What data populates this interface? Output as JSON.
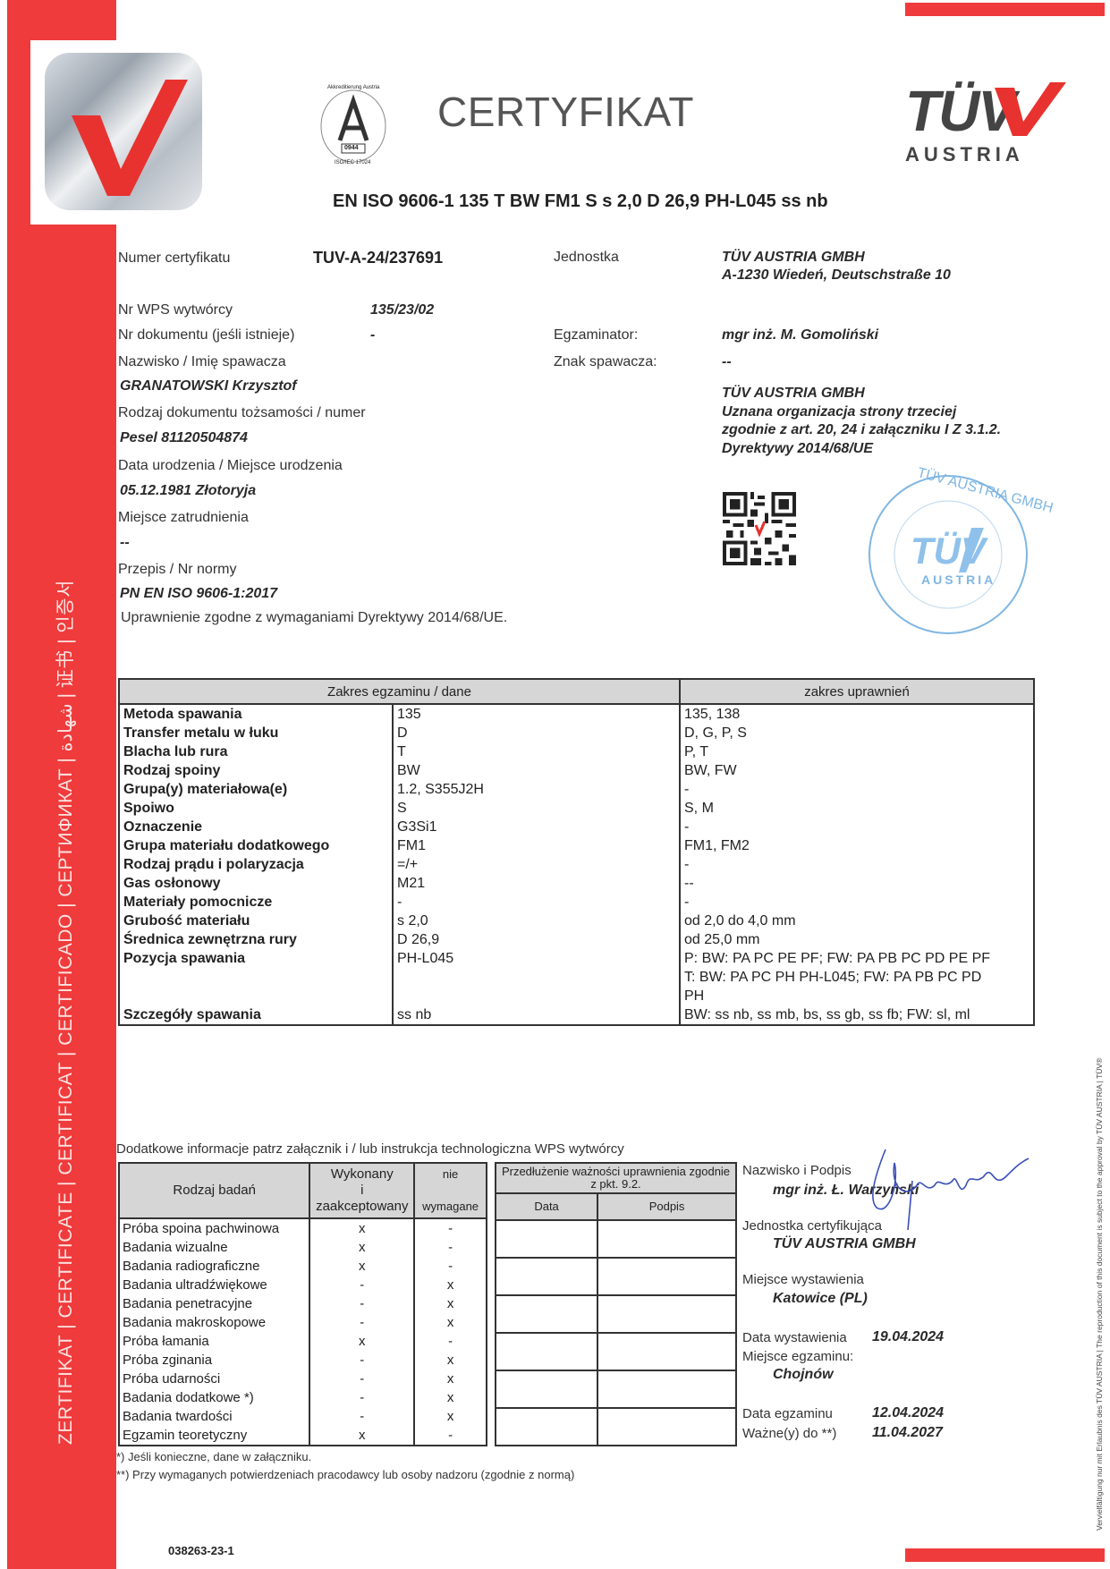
{
  "band": {
    "text": "ZERTIFIKAT | CERTIFICATE | CERTIFICAT | CERTIFICADO | СЕРТИФИКАТ | شهادة | 证书 | 인증서",
    "color": "#ef3b3b"
  },
  "logos": {
    "accreditation": {
      "lines": [
        "Akkreditierung Austria",
        "A",
        "0944",
        "ISO/IEC 17024"
      ]
    },
    "tuv": {
      "word": "TÜV",
      "sub": "AUSTRIA"
    },
    "stamp": {
      "ring": "TÜV AUSTRIA GMBH",
      "word": "TÜV",
      "sub": "AUSTRIA"
    }
  },
  "header": {
    "title": "CERTYFIKAT",
    "standard": "EN ISO 9606-1 135 T BW FM1 S s 2,0 D 26,9 PH-L045 ss nb"
  },
  "info": {
    "cert_no_label": "Numer certyfikatu",
    "cert_no": "TUV-A-24/237691",
    "unit_label": "Jednostka",
    "unit_line1": "TÜV AUSTRIA GMBH",
    "unit_line2": "A-1230 Wiedeń, Deutschstraße 10",
    "wps_label": "Nr WPS wytwórcy",
    "wps": "135/23/02",
    "doc_label": "Nr dokumentu (jeśli istnieje)",
    "doc": "-",
    "examiner_label": "Egzaminator:",
    "examiner": "mgr inż. M. Gomoliński",
    "name_label": "Nazwisko / Imię spawacza",
    "name": "GRANATOWSKI Krzysztof",
    "mark_label": "Znak spawacza:",
    "mark": "--",
    "id_label": "Rodzaj dokumentu tożsamości / numer",
    "id": "Pesel 81120504874",
    "birth_label": "Data urodzenia / Miejsce urodzenia",
    "birth": "05.12.1981 Złotoryja",
    "employer_label": "Miejsce zatrudnienia",
    "employer": "--",
    "norm_label": "Przepis / Nr normy",
    "norm": "PN EN ISO 9606-1:2017",
    "directive_note": "Uprawnienie zgodne z wymaganiami Dyrektywy 2014/68/UE.",
    "org": [
      "TÜV AUSTRIA GMBH",
      "Uznana organizacja strony trzeciej",
      "zgodnie z art. 20, 24 i załączniku I Z 3.1.2.",
      "Dyrektywy 2014/68/UE"
    ]
  },
  "scope_table": {
    "headers": [
      "Zakres egzaminu / dane",
      "zakres uprawnień"
    ],
    "rows": [
      [
        "Metoda spawania",
        "135",
        "135, 138"
      ],
      [
        "Transfer metalu w łuku",
        "D",
        "D, G, P, S"
      ],
      [
        "Blacha lub rura",
        "T",
        "P, T"
      ],
      [
        "Rodzaj spoiny",
        "BW",
        "BW, FW"
      ],
      [
        "Grupa(y) materiałowa(e)",
        "1.2, S355J2H",
        "-"
      ],
      [
        "Spoiwo",
        "S",
        "S, M"
      ],
      [
        "Oznaczenie",
        "G3Si1",
        "-"
      ],
      [
        "Grupa materiału dodatkowego",
        "FM1",
        "FM1, FM2"
      ],
      [
        "Rodzaj prądu i polaryzacja",
        "=/+",
        "-"
      ],
      [
        "Gas osłonowy",
        "M21",
        "--"
      ],
      [
        "Materiały pomocnicze",
        "-",
        "-"
      ],
      [
        "Grubość materiału",
        "s 2,0",
        "od 2,0 do 4,0 mm"
      ],
      [
        "Średnica zewnętrzna rury",
        "D 26,9",
        "od 25,0 mm"
      ],
      [
        "Pozycja spawania",
        "PH-L045",
        "P: BW: PA PC PE PF; FW: PA PB PC PD PE PF\nT: BW: PA PC PH PH-L045; FW: PA PB PC PD\nPH"
      ],
      [
        "Szczegóły spawania",
        "ss nb",
        "BW: ss nb, ss mb, bs, ss gb, ss fb; FW: sl, ml"
      ]
    ]
  },
  "additional_note": "Dodatkowe informacje patrz załącznik i / lub instrukcja technologiczna WPS wytwórcy",
  "tests_table": {
    "headers": [
      "Rodzaj badań",
      "Wykonany\ni\nzaakceptowany",
      "nie\n\nwymagane"
    ],
    "rows": [
      [
        "Próba spoina pachwinowa",
        "x",
        "-"
      ],
      [
        "Badania wizualne",
        "x",
        "-"
      ],
      [
        "Badania radiograficzne",
        "x",
        "-"
      ],
      [
        "Badania ultradźwiękowe",
        "-",
        "x"
      ],
      [
        "Badania penetracyjne",
        "-",
        "x"
      ],
      [
        "Badania makroskopowe",
        "-",
        "x"
      ],
      [
        "Próba łamania",
        "x",
        "-"
      ],
      [
        "Próba zginania",
        "-",
        "x"
      ],
      [
        "Próba udarności",
        "-",
        "x"
      ],
      [
        "Badania dodatkowe *)",
        "-",
        "x"
      ],
      [
        "Badania twardości",
        "-",
        "x"
      ],
      [
        "Egzamin teoretyczny",
        "x",
        "-"
      ]
    ]
  },
  "extension_table": {
    "title": "Przedłużenie ważności uprawnienia zgodnie z pkt. 9.2.",
    "headers": [
      "Data",
      "Podpis"
    ],
    "rows": 6
  },
  "signoff": {
    "name_label": "Nazwisko i Podpis",
    "name": "mgr inż. Ł. Warzyński",
    "body_label": "Jednostka certyfikująca",
    "body": "TÜV AUSTRIA GMBH",
    "place_label": "Miejsce wystawienia",
    "place": "Katowice (PL)",
    "issue_label": "Data wystawienia",
    "issue": "19.04.2024",
    "exam_place_label": "Miejsce egzaminu:",
    "exam_place": "Chojnów",
    "exam_date_label": "Data egzaminu",
    "exam_date": "12.04.2024",
    "valid_label": "Ważne(y) do **)",
    "valid": "11.04.2027"
  },
  "footnotes": [
    "*) Jeśli konieczne, dane w załączniku.",
    "**) Przy wymaganych potwierdzeniach pracodawcy lub osoby nadzoru (zgodnie z normą)"
  ],
  "doc_code": "038263-23-1",
  "side_note": "Vervielfältigung nur mit Erlaubnis des TÜV AUSTRIA | The reproduction of this document is subject to the approval by TÜV AUSTRIA | TÜV®"
}
